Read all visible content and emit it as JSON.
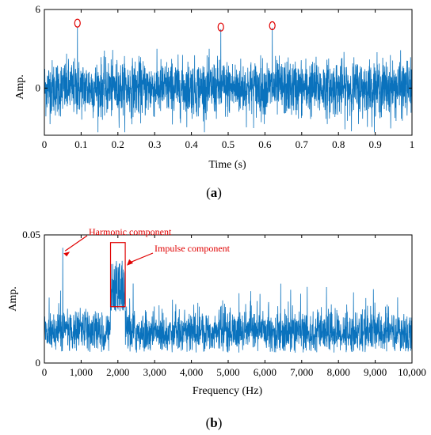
{
  "colors": {
    "signal": "#0a72bd",
    "annotation": "#e00000",
    "axis": "#000000"
  },
  "chart_data": [
    {
      "type": "line",
      "panel_label": "(a)",
      "panel_label_parts": [
        "(",
        "a",
        ")"
      ],
      "xlabel": "Time (s)",
      "ylabel": "Amp.",
      "xlim": [
        0,
        1
      ],
      "ylim": [
        -3.6,
        6
      ],
      "xticks": [
        0,
        0.1,
        0.2,
        0.3,
        0.4,
        0.5,
        0.6,
        0.7,
        0.8,
        0.9,
        1
      ],
      "xtick_labels": [
        "0",
        "0.1",
        "0.2",
        "0.3",
        "0.4",
        "0.5",
        "0.6",
        "0.7",
        "0.8",
        "0.9",
        "1"
      ],
      "yticks": [
        0,
        6
      ],
      "ytick_labels": [
        "0",
        "6"
      ],
      "signal_description": "noisy vibration signal, envelope roughly ±2.5 with occasional excursions to about 3",
      "noise_amplitude": 2.5,
      "impulses": [
        {
          "x": 0.09,
          "y": 4.7
        },
        {
          "x": 0.48,
          "y": 4.5
        },
        {
          "x": 0.62,
          "y": 4.6
        }
      ],
      "marked_peaks": [
        {
          "x": 0.09,
          "y": 4.9
        },
        {
          "x": 0.48,
          "y": 4.6
        },
        {
          "x": 0.62,
          "y": 4.7
        }
      ],
      "grid": false,
      "box": true
    },
    {
      "type": "line",
      "panel_label": "(b)",
      "panel_label_parts": [
        "(",
        "b",
        ")"
      ],
      "xlabel": "Frequency (Hz)",
      "ylabel": "Amp.",
      "xlim": [
        0,
        10000
      ],
      "ylim": [
        0,
        0.05
      ],
      "xticks": [
        0,
        1000,
        2000,
        3000,
        4000,
        5000,
        6000,
        7000,
        8000,
        9000,
        10000
      ],
      "xtick_labels": [
        "0",
        "1,000",
        "2,000",
        "3,000",
        "4,000",
        "5,000",
        "6,000",
        "7,000",
        "8,000",
        "9,000",
        "10,000"
      ],
      "yticks": [
        0,
        0.05
      ],
      "ytick_labels": [
        "0",
        "0.05"
      ],
      "signal_description": "broadband spectrum, typically 0.005 to 0.022 with spikes up to about 0.03",
      "harmonic_peak": {
        "x": 500,
        "y": 0.045
      },
      "impulse_band": {
        "x_start": 1800,
        "x_end": 2200,
        "y_top": 0.04
      },
      "annotations": [
        {
          "text": "Harmonic component",
          "target_x": 500,
          "target_y": 0.045
        },
        {
          "text": "Impulse component",
          "box_x": [
            1800,
            2200
          ],
          "box_y": [
            0.022,
            0.047
          ]
        }
      ],
      "grid": false,
      "box": true
    }
  ]
}
